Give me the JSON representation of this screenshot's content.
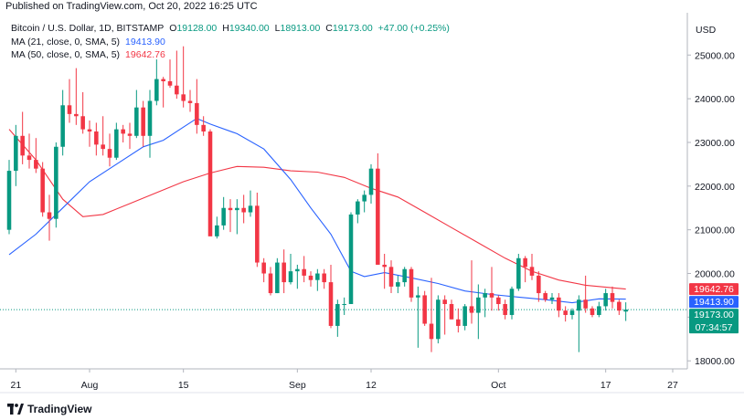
{
  "header": {
    "text": "Published on TradingView.com, Oct 20, 2022 16:25 UTC"
  },
  "legend": {
    "symbol": "Bitcoin / U.S. Dollar, 1D, BITSTAMP",
    "open_label": "O",
    "open": "19128.00",
    "high_label": "H",
    "high": "19340.00",
    "low_label": "L",
    "low": "18913.00",
    "close_label": "C",
    "close": "19173.00",
    "change": "+47.00 (+0.25%)",
    "ma21_label": "MA (21, close, 0, SMA, 5)",
    "ma21_value": "19413.90",
    "ma50_label": "MA (50, close, 0, SMA, 5)",
    "ma50_value": "19642.76"
  },
  "currency": "USD",
  "footer": {
    "brand": "TradingView",
    "logo_icon": "tradingview-logo-icon"
  },
  "colors": {
    "up": "#089981",
    "down": "#f23645",
    "ma21": "#2962ff",
    "ma50": "#f23645",
    "grid": "#e0e3eb"
  },
  "chart_data": {
    "type": "candlestick",
    "title": "Bitcoin / U.S. Dollar, 1D, BITSTAMP",
    "ylabel": "USD",
    "ylim": [
      17900,
      25800
    ],
    "ticks_y": [
      "18000.00",
      "19000.00",
      "20000.00",
      "21000.00",
      "22000.00",
      "23000.00",
      "24000.00",
      "25000.00"
    ],
    "ticks_x": [
      {
        "label": "21",
        "date": "2022-07-21"
      },
      {
        "label": "Aug",
        "date": "2022-08-01"
      },
      {
        "label": "15",
        "date": "2022-08-15"
      },
      {
        "label": "Sep",
        "date": "2022-09-01"
      },
      {
        "label": "12",
        "date": "2022-09-12"
      },
      {
        "label": "Oct",
        "date": "2022-10-01"
      },
      {
        "label": "17",
        "date": "2022-10-17"
      },
      {
        "label": "27",
        "date": "2022-10-27"
      }
    ],
    "x_range": [
      "2022-07-20",
      "2022-10-28"
    ],
    "candles": [
      {
        "date": "2022-07-20",
        "o": 21000,
        "h": 22600,
        "l": 20900,
        "c": 22350
      },
      {
        "date": "2022-07-21",
        "o": 22350,
        "h": 23400,
        "l": 22000,
        "c": 23150
      },
      {
        "date": "2022-07-22",
        "o": 23150,
        "h": 23700,
        "l": 22500,
        "c": 22700
      },
      {
        "date": "2022-07-23",
        "o": 22700,
        "h": 23200,
        "l": 22400,
        "c": 22600
      },
      {
        "date": "2022-07-24",
        "o": 22600,
        "h": 23100,
        "l": 22300,
        "c": 22400
      },
      {
        "date": "2022-07-25",
        "o": 22400,
        "h": 22550,
        "l": 21300,
        "c": 21400
      },
      {
        "date": "2022-07-26",
        "o": 21400,
        "h": 21800,
        "l": 20750,
        "c": 21250
      },
      {
        "date": "2022-07-27",
        "o": 21250,
        "h": 23000,
        "l": 21050,
        "c": 22900
      },
      {
        "date": "2022-07-28",
        "o": 22900,
        "h": 24200,
        "l": 22700,
        "c": 23850
      },
      {
        "date": "2022-07-29",
        "o": 23850,
        "h": 24450,
        "l": 23450,
        "c": 23650
      },
      {
        "date": "2022-07-30",
        "o": 23650,
        "h": 24700,
        "l": 23400,
        "c": 23600
      },
      {
        "date": "2022-07-31",
        "o": 23600,
        "h": 24150,
        "l": 23200,
        "c": 23300
      },
      {
        "date": "2022-08-01",
        "o": 23300,
        "h": 23500,
        "l": 22900,
        "c": 23250
      },
      {
        "date": "2022-08-02",
        "o": 23250,
        "h": 23450,
        "l": 22700,
        "c": 22950
      },
      {
        "date": "2022-08-03",
        "o": 22950,
        "h": 23600,
        "l": 22700,
        "c": 22850
      },
      {
        "date": "2022-08-04",
        "o": 22850,
        "h": 23200,
        "l": 22450,
        "c": 22650
      },
      {
        "date": "2022-08-05",
        "o": 22650,
        "h": 23450,
        "l": 22600,
        "c": 23300
      },
      {
        "date": "2022-08-06",
        "o": 23300,
        "h": 23400,
        "l": 23000,
        "c": 23200
      },
      {
        "date": "2022-08-07",
        "o": 23200,
        "h": 23450,
        "l": 22850,
        "c": 23150
      },
      {
        "date": "2022-08-08",
        "o": 23150,
        "h": 24200,
        "l": 23100,
        "c": 23800
      },
      {
        "date": "2022-08-09",
        "o": 23800,
        "h": 23950,
        "l": 22900,
        "c": 23150
      },
      {
        "date": "2022-08-10",
        "o": 23150,
        "h": 24200,
        "l": 22650,
        "c": 23950
      },
      {
        "date": "2022-08-11",
        "o": 23950,
        "h": 24900,
        "l": 23850,
        "c": 24450
      },
      {
        "date": "2022-08-12",
        "o": 24450,
        "h": 24500,
        "l": 23800,
        "c": 24400
      },
      {
        "date": "2022-08-13",
        "o": 24400,
        "h": 24900,
        "l": 24250,
        "c": 24300
      },
      {
        "date": "2022-08-14",
        "o": 24300,
        "h": 25100,
        "l": 24000,
        "c": 24100
      },
      {
        "date": "2022-08-15",
        "o": 24100,
        "h": 25200,
        "l": 23800,
        "c": 23950
      },
      {
        "date": "2022-08-16",
        "o": 23950,
        "h": 24200,
        "l": 23700,
        "c": 23900
      },
      {
        "date": "2022-08-17",
        "o": 23900,
        "h": 24450,
        "l": 23200,
        "c": 23400
      },
      {
        "date": "2022-08-18",
        "o": 23400,
        "h": 23600,
        "l": 23150,
        "c": 23250
      },
      {
        "date": "2022-08-19",
        "o": 23250,
        "h": 23300,
        "l": 20900,
        "c": 20850
      },
      {
        "date": "2022-08-20",
        "o": 20850,
        "h": 21300,
        "l": 20800,
        "c": 21100
      },
      {
        "date": "2022-08-21",
        "o": 21100,
        "h": 21750,
        "l": 21000,
        "c": 21500
      },
      {
        "date": "2022-08-22",
        "o": 21500,
        "h": 21700,
        "l": 20950,
        "c": 21450
      },
      {
        "date": "2022-08-23",
        "o": 21450,
        "h": 21700,
        "l": 20900,
        "c": 21500
      },
      {
        "date": "2022-08-24",
        "o": 21500,
        "h": 21800,
        "l": 21150,
        "c": 21400
      },
      {
        "date": "2022-08-25",
        "o": 21400,
        "h": 21900,
        "l": 21300,
        "c": 21550
      },
      {
        "date": "2022-08-26",
        "o": 21550,
        "h": 21850,
        "l": 20150,
        "c": 20250
      },
      {
        "date": "2022-08-27",
        "o": 20250,
        "h": 20350,
        "l": 19800,
        "c": 20000
      },
      {
        "date": "2022-08-28",
        "o": 20000,
        "h": 20150,
        "l": 19500,
        "c": 19550
      },
      {
        "date": "2022-08-29",
        "o": 19550,
        "h": 20350,
        "l": 19550,
        "c": 20250
      },
      {
        "date": "2022-08-30",
        "o": 20250,
        "h": 20550,
        "l": 19550,
        "c": 19800
      },
      {
        "date": "2022-08-31",
        "o": 19800,
        "h": 20450,
        "l": 19750,
        "c": 20050
      },
      {
        "date": "2022-09-01",
        "o": 20050,
        "h": 20200,
        "l": 19650,
        "c": 20100
      },
      {
        "date": "2022-09-02",
        "o": 20100,
        "h": 20400,
        "l": 19800,
        "c": 19950
      },
      {
        "date": "2022-09-03",
        "o": 19950,
        "h": 20050,
        "l": 19700,
        "c": 19850
      },
      {
        "date": "2022-09-04",
        "o": 19850,
        "h": 20100,
        "l": 19600,
        "c": 20000
      },
      {
        "date": "2022-09-05",
        "o": 20000,
        "h": 20100,
        "l": 19650,
        "c": 19800
      },
      {
        "date": "2022-09-06",
        "o": 19800,
        "h": 20200,
        "l": 18750,
        "c": 18800
      },
      {
        "date": "2022-09-07",
        "o": 18800,
        "h": 19400,
        "l": 18550,
        "c": 19300
      },
      {
        "date": "2022-09-08",
        "o": 19300,
        "h": 19450,
        "l": 19050,
        "c": 19300
      },
      {
        "date": "2022-09-09",
        "o": 19300,
        "h": 21400,
        "l": 19300,
        "c": 21350
      },
      {
        "date": "2022-09-10",
        "o": 21350,
        "h": 21700,
        "l": 21150,
        "c": 21650
      },
      {
        "date": "2022-09-11",
        "o": 21650,
        "h": 21900,
        "l": 21400,
        "c": 21800
      },
      {
        "date": "2022-09-12",
        "o": 21800,
        "h": 22500,
        "l": 21600,
        "c": 22400
      },
      {
        "date": "2022-09-13",
        "o": 22400,
        "h": 22750,
        "l": 20200,
        "c": 20200
      },
      {
        "date": "2022-09-14",
        "o": 20200,
        "h": 20450,
        "l": 19650,
        "c": 20150
      },
      {
        "date": "2022-09-15",
        "o": 20150,
        "h": 20300,
        "l": 19550,
        "c": 19700
      },
      {
        "date": "2022-09-16",
        "o": 19700,
        "h": 19950,
        "l": 19550,
        "c": 19800
      },
      {
        "date": "2022-09-17",
        "o": 19800,
        "h": 20150,
        "l": 19700,
        "c": 20100
      },
      {
        "date": "2022-09-18",
        "o": 20100,
        "h": 20150,
        "l": 19350,
        "c": 19450
      },
      {
        "date": "2022-09-19",
        "o": 19450,
        "h": 19700,
        "l": 18300,
        "c": 19500
      },
      {
        "date": "2022-09-20",
        "o": 19500,
        "h": 19600,
        "l": 18800,
        "c": 18850
      },
      {
        "date": "2022-09-21",
        "o": 18850,
        "h": 19900,
        "l": 18200,
        "c": 18500
      },
      {
        "date": "2022-09-22",
        "o": 18500,
        "h": 19500,
        "l": 18400,
        "c": 19400
      },
      {
        "date": "2022-09-23",
        "o": 19400,
        "h": 19500,
        "l": 18600,
        "c": 19300
      },
      {
        "date": "2022-09-24",
        "o": 19300,
        "h": 19400,
        "l": 18950,
        "c": 18950
      },
      {
        "date": "2022-09-25",
        "o": 18950,
        "h": 19200,
        "l": 18650,
        "c": 18800
      },
      {
        "date": "2022-09-26",
        "o": 18800,
        "h": 19300,
        "l": 18700,
        "c": 19250
      },
      {
        "date": "2022-09-27",
        "o": 19250,
        "h": 20300,
        "l": 18850,
        "c": 19100
      },
      {
        "date": "2022-09-28",
        "o": 19100,
        "h": 19750,
        "l": 18500,
        "c": 19450
      },
      {
        "date": "2022-09-29",
        "o": 19450,
        "h": 19650,
        "l": 19000,
        "c": 19550
      },
      {
        "date": "2022-09-30",
        "o": 19550,
        "h": 20150,
        "l": 19150,
        "c": 19450
      },
      {
        "date": "2022-10-01",
        "o": 19450,
        "h": 19500,
        "l": 19150,
        "c": 19300
      },
      {
        "date": "2022-10-02",
        "o": 19300,
        "h": 19400,
        "l": 18950,
        "c": 19050
      },
      {
        "date": "2022-10-03",
        "o": 19050,
        "h": 19700,
        "l": 18950,
        "c": 19650
      },
      {
        "date": "2022-10-04",
        "o": 19650,
        "h": 20450,
        "l": 19600,
        "c": 20350
      },
      {
        "date": "2022-10-05",
        "o": 20350,
        "h": 20400,
        "l": 19800,
        "c": 20150
      },
      {
        "date": "2022-10-06",
        "o": 20150,
        "h": 20450,
        "l": 19850,
        "c": 19950
      },
      {
        "date": "2022-10-07",
        "o": 19950,
        "h": 20050,
        "l": 19350,
        "c": 19550
      },
      {
        "date": "2022-10-08",
        "o": 19550,
        "h": 19600,
        "l": 19350,
        "c": 19400
      },
      {
        "date": "2022-10-09",
        "o": 19400,
        "h": 19550,
        "l": 19300,
        "c": 19450
      },
      {
        "date": "2022-10-10",
        "o": 19450,
        "h": 19550,
        "l": 19000,
        "c": 19150
      },
      {
        "date": "2022-10-11",
        "o": 19150,
        "h": 19250,
        "l": 18900,
        "c": 19050
      },
      {
        "date": "2022-10-12",
        "o": 19050,
        "h": 19200,
        "l": 18950,
        "c": 19150
      },
      {
        "date": "2022-10-13",
        "o": 19150,
        "h": 19500,
        "l": 18200,
        "c": 19400
      },
      {
        "date": "2022-10-14",
        "o": 19400,
        "h": 19950,
        "l": 19100,
        "c": 19200
      },
      {
        "date": "2022-10-15",
        "o": 19200,
        "h": 19250,
        "l": 19000,
        "c": 19050
      },
      {
        "date": "2022-10-16",
        "o": 19050,
        "h": 19350,
        "l": 19000,
        "c": 19250
      },
      {
        "date": "2022-10-17",
        "o": 19250,
        "h": 19650,
        "l": 19150,
        "c": 19550
      },
      {
        "date": "2022-10-18",
        "o": 19550,
        "h": 19700,
        "l": 19200,
        "c": 19350
      },
      {
        "date": "2022-10-19",
        "o": 19350,
        "h": 19400,
        "l": 19050,
        "c": 19150
      },
      {
        "date": "2022-10-20",
        "o": 19128,
        "h": 19340,
        "l": 18913,
        "c": 19173
      }
    ],
    "ma21": [
      [
        "2022-07-20",
        20430
      ],
      [
        "2022-07-24",
        20900
      ],
      [
        "2022-07-28",
        21500
      ],
      [
        "2022-08-01",
        22100
      ],
      [
        "2022-08-05",
        22500
      ],
      [
        "2022-08-09",
        22900
      ],
      [
        "2022-08-12",
        23050
      ],
      [
        "2022-08-15",
        23350
      ],
      [
        "2022-08-17",
        23550
      ],
      [
        "2022-08-19",
        23420
      ],
      [
        "2022-08-23",
        23200
      ],
      [
        "2022-08-27",
        22850
      ],
      [
        "2022-08-31",
        22150
      ],
      [
        "2022-09-03",
        21500
      ],
      [
        "2022-09-06",
        20900
      ],
      [
        "2022-09-09",
        20050
      ],
      [
        "2022-09-11",
        19930
      ],
      [
        "2022-09-14",
        20020
      ],
      [
        "2022-09-18",
        19900
      ],
      [
        "2022-09-22",
        19770
      ],
      [
        "2022-09-26",
        19600
      ],
      [
        "2022-09-30",
        19520
      ],
      [
        "2022-10-04",
        19460
      ],
      [
        "2022-10-08",
        19400
      ],
      [
        "2022-10-12",
        19330
      ],
      [
        "2022-10-16",
        19420
      ],
      [
        "2022-10-20",
        19413.9
      ]
    ],
    "ma50": [
      [
        "2022-07-20",
        23300
      ],
      [
        "2022-07-24",
        22600
      ],
      [
        "2022-07-28",
        21700
      ],
      [
        "2022-07-31",
        21300
      ],
      [
        "2022-08-03",
        21350
      ],
      [
        "2022-08-07",
        21600
      ],
      [
        "2022-08-11",
        21850
      ],
      [
        "2022-08-15",
        22100
      ],
      [
        "2022-08-19",
        22300
      ],
      [
        "2022-08-23",
        22450
      ],
      [
        "2022-08-27",
        22430
      ],
      [
        "2022-08-31",
        22350
      ],
      [
        "2022-09-04",
        22320
      ],
      [
        "2022-09-08",
        22200
      ],
      [
        "2022-09-12",
        21950
      ],
      [
        "2022-09-16",
        21750
      ],
      [
        "2022-09-20",
        21400
      ],
      [
        "2022-09-24",
        21050
      ],
      [
        "2022-09-28",
        20700
      ],
      [
        "2022-10-02",
        20350
      ],
      [
        "2022-10-06",
        20050
      ],
      [
        "2022-10-10",
        19850
      ],
      [
        "2022-10-14",
        19730
      ],
      [
        "2022-10-20",
        19642.76
      ]
    ],
    "price_badges": [
      {
        "name": "ma50-price-badge",
        "label": "19642.76",
        "value": 19642.76,
        "color": "#f23645"
      },
      {
        "name": "ma21-price-badge",
        "label": "19413.90",
        "value": 19413.9,
        "color": "#2962ff"
      },
      {
        "name": "last-price-badge",
        "label": "19173.00",
        "value": 19173,
        "color": "#089981",
        "countdown": "07:34:57"
      }
    ],
    "last_price_line": 19173
  }
}
